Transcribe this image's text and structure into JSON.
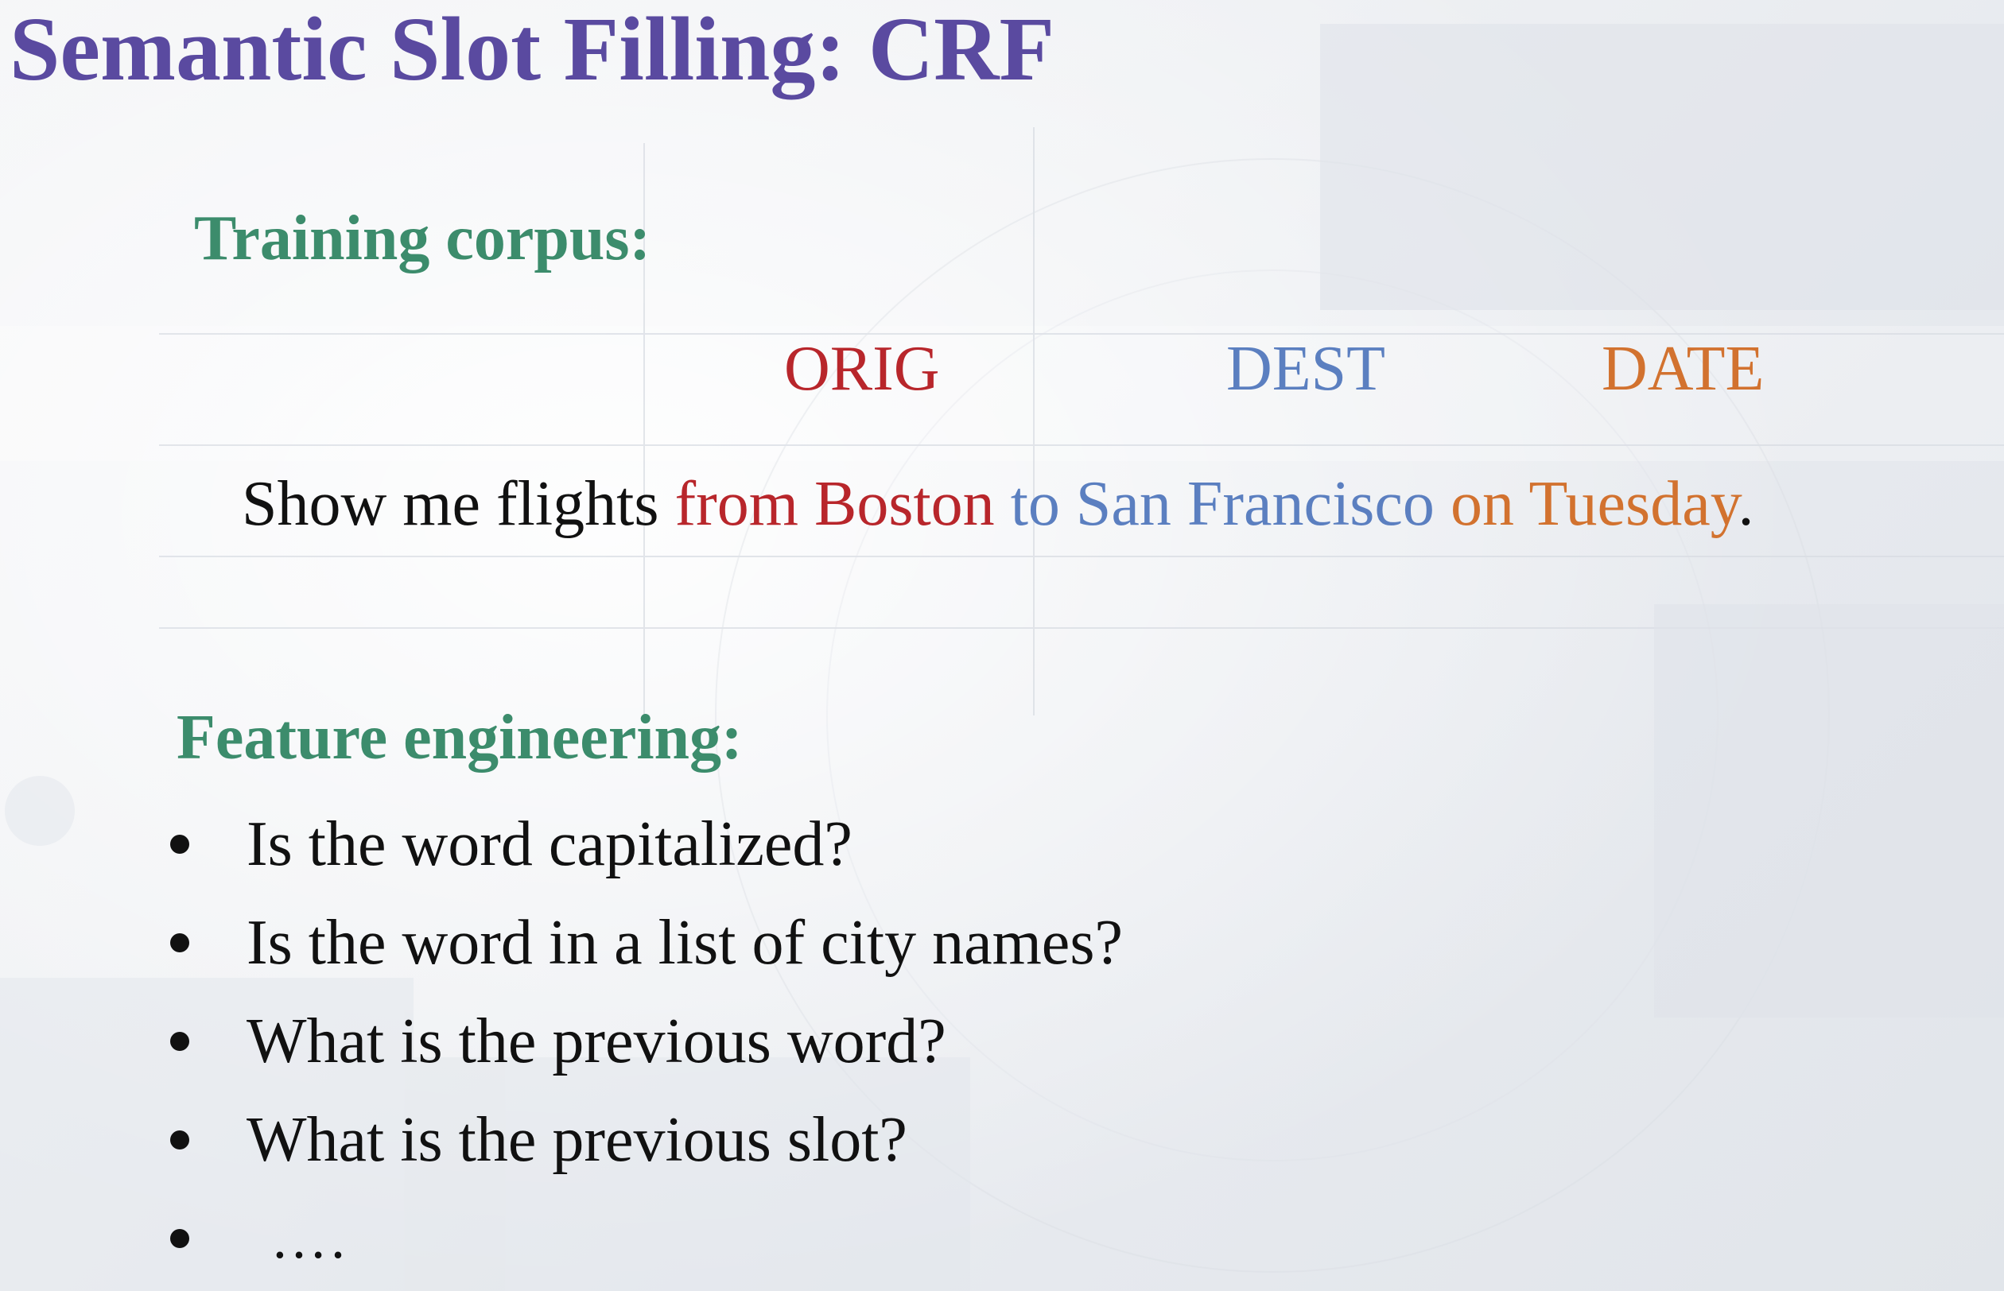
{
  "title": "Semantic Slot Filling: CRF",
  "training": {
    "heading": "Training corpus:",
    "labels": {
      "orig": "ORIG",
      "dest": "DEST",
      "date": "DATE"
    },
    "sentence": {
      "plain": "Show me flights ",
      "orig": "from Boston",
      "dest": " to San Francisco",
      "date": " on Tuesday",
      "end": "."
    }
  },
  "features": {
    "heading": "Feature engineering:",
    "items": [
      "Is the word capitalized?",
      "Is the word in a list of city names?",
      "What is the previous word?",
      "What is the previous slot?",
      "…."
    ]
  },
  "colors": {
    "title": "#5a4aa0",
    "heading": "#3c8c6c",
    "orig": "#b8262b",
    "dest": "#5b7fc0",
    "date": "#d2722f"
  }
}
